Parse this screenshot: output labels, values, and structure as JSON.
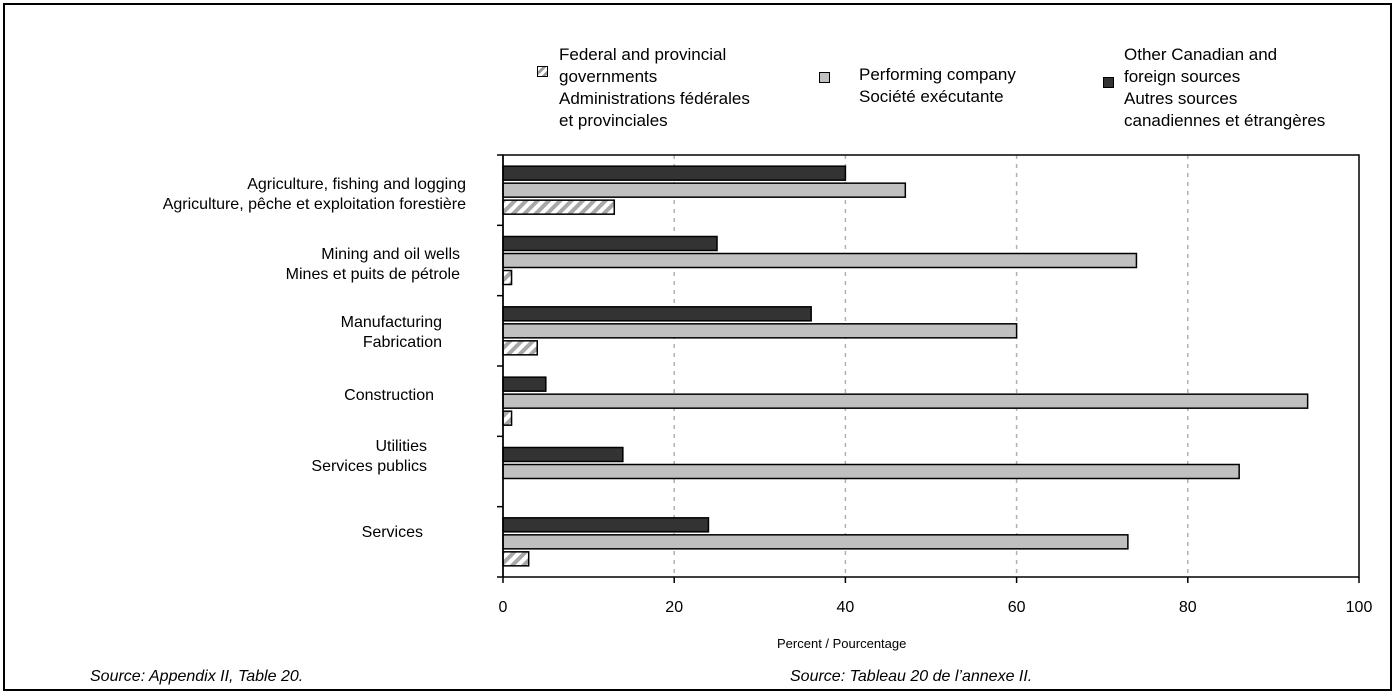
{
  "chart_data": {
    "type": "bar",
    "orientation": "horizontal",
    "categories": [
      "Agriculture, fishing and logging / Agriculture, pêche et exploitation forestière",
      "Mining and oil wells / Mines et puits de pétrole",
      "Manufacturing / Fabrication",
      "Construction",
      "Utilities / Services publics",
      "Services"
    ],
    "category_labels": [
      [
        "Agriculture, fishing and logging",
        "Agriculture, pêche et exploitation forestière"
      ],
      [
        "Mining and oil wells",
        "Mines et puits de pétrole"
      ],
      [
        "Manufacturing",
        "Fabrication"
      ],
      [
        "Construction"
      ],
      [
        "Utilities",
        "Services publics"
      ],
      [
        "Services"
      ]
    ],
    "series": [
      {
        "name": "Other Canadian and foreign sources / Autres sources canadiennes et étrangères",
        "color": "#333333",
        "values": [
          40,
          25,
          36,
          5,
          14,
          24
        ]
      },
      {
        "name": "Performing company / Société exécutante",
        "color": "#c0c0c0",
        "values": [
          47,
          74,
          60,
          94,
          86,
          73
        ]
      },
      {
        "name": "Federal and provincial governments / Administrations fédérales et provinciales",
        "color": "#d0d0d0",
        "pattern": "hatch",
        "values": [
          13,
          1,
          4,
          1,
          0,
          3
        ]
      }
    ],
    "xlabel": "Percent / Pourcentage",
    "xlim": [
      0,
      100
    ],
    "xticks": [
      0,
      20,
      40,
      60,
      80,
      100
    ],
    "grid": "vertical dashed",
    "legend_placement": "top"
  },
  "legend": [
    {
      "lines": [
        "Federal and provincial",
        "governments",
        "Administrations fédérales",
        "et provinciales"
      ]
    },
    {
      "lines": [
        "Performing company",
        "Société exécutante"
      ]
    },
    {
      "lines": [
        "Other Canadian and",
        "foreign sources",
        "Autres sources",
        "canadiennes et étrangères"
      ]
    }
  ],
  "footer": {
    "source_en": "Source:  Appendix II, Table 20.",
    "source_fr": "Source:   Tableau 20 de l’annexe II."
  }
}
